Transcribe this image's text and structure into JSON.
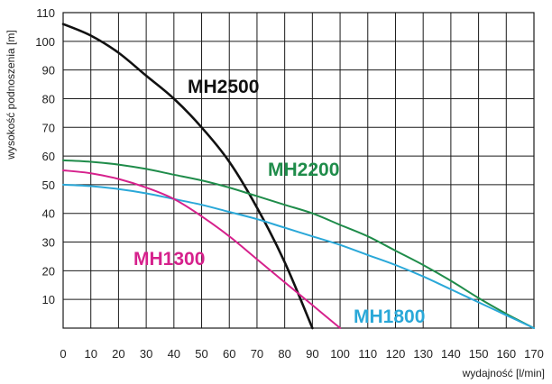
{
  "chart_data": {
    "type": "line",
    "title": "",
    "xlabel": "wydajność [l/min]",
    "ylabel": "wysokość podnoszenia [m]",
    "xlim": [
      0,
      170
    ],
    "ylim": [
      0,
      110
    ],
    "x_ticks": [
      0,
      10,
      20,
      30,
      40,
      50,
      60,
      70,
      80,
      90,
      100,
      110,
      120,
      130,
      140,
      150,
      160,
      170
    ],
    "y_ticks": [
      10,
      20,
      30,
      40,
      50,
      60,
      70,
      80,
      90,
      100,
      110
    ],
    "grid": true,
    "series": [
      {
        "name": "MH2500",
        "color": "#111111",
        "x": [
          0,
          10,
          20,
          30,
          40,
          50,
          60,
          70,
          80,
          90
        ],
        "y": [
          106,
          102,
          96,
          88,
          80,
          70,
          58,
          42,
          23,
          0
        ]
      },
      {
        "name": "MH2200",
        "color": "#1f8c4a",
        "x": [
          0,
          10,
          20,
          30,
          40,
          50,
          60,
          70,
          80,
          90,
          100,
          110,
          120,
          130,
          140,
          150,
          160,
          170
        ],
        "y": [
          58.5,
          58,
          57,
          55.5,
          53.5,
          51.5,
          49,
          46,
          43,
          40,
          36,
          32,
          27,
          22,
          16.5,
          10.5,
          5,
          0
        ]
      },
      {
        "name": "MH1800",
        "color": "#2aa8d8",
        "x": [
          0,
          10,
          20,
          30,
          40,
          50,
          60,
          70,
          80,
          90,
          100,
          110,
          120,
          130,
          140,
          150,
          160,
          170
        ],
        "y": [
          50,
          49.5,
          48.5,
          47,
          45,
          43,
          40.5,
          38,
          35,
          32,
          29,
          25.5,
          22,
          18,
          13.5,
          9,
          4.5,
          0
        ]
      },
      {
        "name": "MH1300",
        "color": "#d6218c",
        "x": [
          0,
          10,
          20,
          30,
          40,
          50,
          60,
          70,
          80,
          90,
          100
        ],
        "y": [
          55,
          54,
          52,
          49,
          45,
          39,
          32,
          24,
          16,
          8,
          0
        ]
      }
    ],
    "annotations": [
      {
        "series": "MH2500",
        "text": "MH2500"
      },
      {
        "series": "MH2200",
        "text": "MH2200"
      },
      {
        "series": "MH1800",
        "text": "MH1800"
      },
      {
        "series": "MH1300",
        "text": "MH1300"
      }
    ]
  }
}
